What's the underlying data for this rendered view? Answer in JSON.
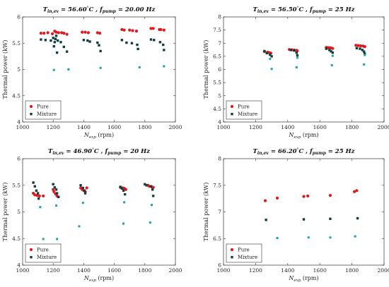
{
  "colors": {
    "pure": "#e0191f",
    "mixture_dark": "#123e3e",
    "mixture_light": "#1aa5a5"
  },
  "chart_data": [
    {
      "type": "scatter",
      "title": {
        "t": "T",
        "t_sub": "in,ev",
        "t_val": " = 56.60",
        "deg": "°",
        "c": "C , ",
        "f": "f",
        "f_sub": "pump",
        "f_val": " = 20.00 Hz"
      },
      "xlabel": {
        "main": "N",
        "sub": "exp",
        "unit": " (rpm)"
      },
      "ylabel": "Thermal power (kW)",
      "xlim": [
        1000,
        2000
      ],
      "ylim": [
        4,
        6
      ],
      "xticks": [
        "1000",
        "1200",
        "1400",
        "1600",
        "1800",
        "2000"
      ],
      "yticks": [
        "4",
        "4.5",
        "5",
        "5.5",
        "6"
      ],
      "legend": {
        "position": "bottom-left",
        "entries": [
          "Pure",
          "Mixture"
        ]
      },
      "series": [
        {
          "name": "Pure",
          "points": [
            [
              1120,
              5.69
            ],
            [
              1140,
              5.69
            ],
            [
              1165,
              5.7
            ],
            [
              1195,
              5.68
            ],
            [
              1210,
              5.73
            ],
            [
              1220,
              5.71
            ],
            [
              1235,
              5.7
            ],
            [
              1255,
              5.7
            ],
            [
              1270,
              5.69
            ],
            [
              1290,
              5.67
            ],
            [
              1390,
              5.71
            ],
            [
              1410,
              5.71
            ],
            [
              1430,
              5.7
            ],
            [
              1490,
              5.7
            ],
            [
              1505,
              5.69
            ],
            [
              1650,
              5.76
            ],
            [
              1665,
              5.75
            ],
            [
              1700,
              5.75
            ],
            [
              1720,
              5.74
            ],
            [
              1745,
              5.73
            ],
            [
              1840,
              5.78
            ],
            [
              1855,
              5.78
            ],
            [
              1895,
              5.76
            ],
            [
              1905,
              5.76
            ],
            [
              1925,
              5.75
            ]
          ]
        },
        {
          "name": "Mixture",
          "points": [
            [
              1120,
              5.57
            ],
            [
              1150,
              5.56
            ],
            [
              1185,
              5.55
            ],
            [
              1200,
              5.6
            ],
            [
              1210,
              5.52
            ],
            [
              1215,
              5.58
            ],
            [
              1230,
              5.55
            ],
            [
              1250,
              5.52
            ],
            [
              1270,
              5.43
            ],
            [
              1290,
              5.34
            ],
            [
              1225,
              5.32
            ],
            [
              1205,
              5.44
            ],
            [
              1220,
              5.64
            ],
            [
              1400,
              5.56
            ],
            [
              1425,
              5.55
            ],
            [
              1440,
              5.53
            ],
            [
              1490,
              5.51
            ],
            [
              1500,
              5.46
            ],
            [
              1510,
              5.35
            ],
            [
              1650,
              5.56
            ],
            [
              1680,
              5.51
            ],
            [
              1715,
              5.5
            ],
            [
              1750,
              5.47
            ],
            [
              1755,
              5.39
            ],
            [
              1840,
              5.57
            ],
            [
              1860,
              5.56
            ],
            [
              1900,
              5.52
            ],
            [
              1920,
              5.47
            ],
            [
              1925,
              5.37
            ]
          ]
        },
        {
          "name": "",
          "points": [
            [
              1205,
              4.99
            ],
            [
              1300,
              5.0
            ],
            [
              1510,
              5.03
            ],
            [
              1765,
              5.04
            ],
            [
              1925,
              5.06
            ]
          ]
        }
      ]
    },
    {
      "type": "scatter",
      "title": {
        "t": "T",
        "t_sub": "in,ev",
        "t_val": " = 56.50",
        "deg": "°",
        "c": "C , ",
        "f": "f",
        "f_sub": "pump",
        "f_val": " = 25 Hz"
      },
      "xlabel": {
        "main": "N",
        "sub": "exp",
        "unit": " (rpm)"
      },
      "ylabel": "Thermal power (kW)",
      "xlim": [
        1000,
        2000
      ],
      "ylim": [
        4,
        8
      ],
      "xticks": [
        "1000",
        "1200",
        "1400",
        "1600",
        "1800",
        "2000"
      ],
      "yticks": [
        "4",
        "4.5",
        "5",
        "5.5",
        "6",
        "6.5",
        "7",
        "7.5",
        "8"
      ],
      "legend": {
        "position": "bottom-left",
        "entries": [
          "Pure",
          "Mixture"
        ]
      },
      "series": [
        {
          "name": "Pure",
          "points": [
            [
              1255,
              6.68
            ],
            [
              1275,
              6.66
            ],
            [
              1285,
              6.64
            ],
            [
              1295,
              6.62
            ],
            [
              1410,
              6.76
            ],
            [
              1425,
              6.75
            ],
            [
              1440,
              6.74
            ],
            [
              1455,
              6.73
            ],
            [
              1460,
              6.71
            ],
            [
              1640,
              6.84
            ],
            [
              1650,
              6.83
            ],
            [
              1660,
              6.83
            ],
            [
              1670,
              6.82
            ],
            [
              1680,
              6.8
            ],
            [
              1825,
              6.92
            ],
            [
              1840,
              6.91
            ],
            [
              1855,
              6.9
            ],
            [
              1870,
              6.89
            ],
            [
              1880,
              6.87
            ]
          ]
        },
        {
          "name": "Mixture",
          "points": [
            [
              1255,
              6.7
            ],
            [
              1270,
              6.62
            ],
            [
              1290,
              6.56
            ],
            [
              1300,
              6.5
            ],
            [
              1420,
              6.74
            ],
            [
              1440,
              6.72
            ],
            [
              1455,
              6.64
            ],
            [
              1460,
              6.54
            ],
            [
              1640,
              6.79
            ],
            [
              1660,
              6.74
            ],
            [
              1670,
              6.69
            ],
            [
              1680,
              6.64
            ],
            [
              1830,
              6.81
            ],
            [
              1850,
              6.79
            ],
            [
              1865,
              6.74
            ],
            [
              1875,
              6.68
            ],
            [
              1880,
              6.6
            ]
          ]
        },
        {
          "name": "",
          "points": [
            [
              1290,
              6.4
            ],
            [
              1300,
              6.02
            ],
            [
              1460,
              6.45
            ],
            [
              1455,
              6.08
            ],
            [
              1680,
              6.52
            ],
            [
              1675,
              6.16
            ],
            [
              1880,
              6.55
            ],
            [
              1875,
              6.19
            ]
          ]
        }
      ]
    },
    {
      "type": "scatter",
      "title": {
        "t": "T",
        "t_sub": "in,ev",
        "t_val": " = 46.90",
        "deg": "°",
        "c": "C , ",
        "f": "f",
        "f_sub": "pump",
        "f_val": " = 20 Hz"
      },
      "xlabel": {
        "main": "N",
        "sub": "exp",
        "unit": " (rpm)"
      },
      "ylabel": "Thermal power (kW)",
      "xlim": [
        1000,
        2000
      ],
      "ylim": [
        4,
        6
      ],
      "xticks": [
        "1000",
        "1200",
        "1400",
        "1600",
        "1800",
        "2000"
      ],
      "yticks": [
        "4",
        "4.5",
        "5",
        "5.5",
        "6"
      ],
      "legend": {
        "position": "bottom-left",
        "entries": [
          "Pure",
          "Mixture"
        ]
      },
      "series": [
        {
          "name": "Pure",
          "points": [
            [
              1070,
              5.35
            ],
            [
              1080,
              5.32
            ],
            [
              1095,
              5.31
            ],
            [
              1110,
              5.3
            ],
            [
              1135,
              5.3
            ],
            [
              1200,
              5.42
            ],
            [
              1205,
              5.38
            ],
            [
              1215,
              5.34
            ],
            [
              1225,
              5.3
            ],
            [
              1380,
              5.45
            ],
            [
              1390,
              5.42
            ],
            [
              1400,
              5.4
            ],
            [
              1410,
              5.38
            ],
            [
              1420,
              5.45
            ],
            [
              1640,
              5.46
            ],
            [
              1655,
              5.45
            ],
            [
              1665,
              5.44
            ],
            [
              1670,
              5.43
            ],
            [
              1675,
              5.42
            ],
            [
              1820,
              5.5
            ],
            [
              1830,
              5.48
            ],
            [
              1845,
              5.47
            ],
            [
              1855,
              5.46
            ]
          ]
        },
        {
          "name": "Mixture",
          "points": [
            [
              1070,
              5.55
            ],
            [
              1080,
              5.48
            ],
            [
              1090,
              5.4
            ],
            [
              1100,
              5.35
            ],
            [
              1105,
              5.25
            ],
            [
              1200,
              5.52
            ],
            [
              1210,
              5.46
            ],
            [
              1220,
              5.42
            ],
            [
              1225,
              5.35
            ],
            [
              1235,
              5.28
            ],
            [
              1380,
              5.5
            ],
            [
              1395,
              5.45
            ],
            [
              1405,
              5.4
            ],
            [
              1410,
              5.35
            ],
            [
              1640,
              5.47
            ],
            [
              1650,
              5.44
            ],
            [
              1660,
              5.4
            ],
            [
              1670,
              5.33
            ],
            [
              1800,
              5.52
            ],
            [
              1810,
              5.5
            ],
            [
              1840,
              5.48
            ],
            [
              1850,
              5.42
            ],
            [
              1855,
              5.3
            ]
          ]
        },
        {
          "name": "",
          "points": [
            [
              1115,
              5.09
            ],
            [
              1220,
              5.12
            ],
            [
              1395,
              5.17
            ],
            [
              1665,
              5.18
            ],
            [
              1845,
              5.13
            ],
            [
              1135,
              4.49
            ],
            [
              1225,
              4.49
            ],
            [
              1370,
              4.73
            ],
            [
              1660,
              4.78
            ],
            [
              1835,
              4.8
            ]
          ]
        }
      ]
    },
    {
      "type": "scatter",
      "title": {
        "t": "T",
        "t_sub": "in,ev",
        "t_val": " = 66.20",
        "deg": "°",
        "c": "C , ",
        "f": "f",
        "f_sub": "pump",
        "f_val": " = 25 Hz"
      },
      "xlabel": {
        "main": "N",
        "sub": "exp",
        "unit": " (rpm)"
      },
      "ylabel": "Thermal power (kW)",
      "xlim": [
        1000,
        2000
      ],
      "ylim": [
        6,
        8
      ],
      "xticks": [
        "1000",
        "1200",
        "1400",
        "1600",
        "1800",
        "2000"
      ],
      "yticks": [
        "6",
        "6.5",
        "7",
        "7.5",
        "8"
      ],
      "legend": {
        "position": "bottom-left",
        "entries": [
          "Pure",
          "Mixture"
        ]
      },
      "series": [
        {
          "name": "Pure",
          "points": [
            [
              1260,
              7.21
            ],
            [
              1335,
              7.26
            ],
            [
              1500,
              7.29
            ],
            [
              1525,
              7.3
            ],
            [
              1665,
              7.31
            ],
            [
              1815,
              7.38
            ],
            [
              1830,
              7.4
            ]
          ]
        },
        {
          "name": "Mixture",
          "points": [
            [
              1265,
              6.85
            ],
            [
              1500,
              6.86
            ],
            [
              1665,
              6.87
            ],
            [
              1835,
              6.88
            ]
          ]
        },
        {
          "name": "",
          "points": [
            [
              1335,
              6.51
            ],
            [
              1530,
              6.52
            ],
            [
              1665,
              6.52
            ],
            [
              1820,
              6.54
            ]
          ]
        }
      ]
    }
  ]
}
